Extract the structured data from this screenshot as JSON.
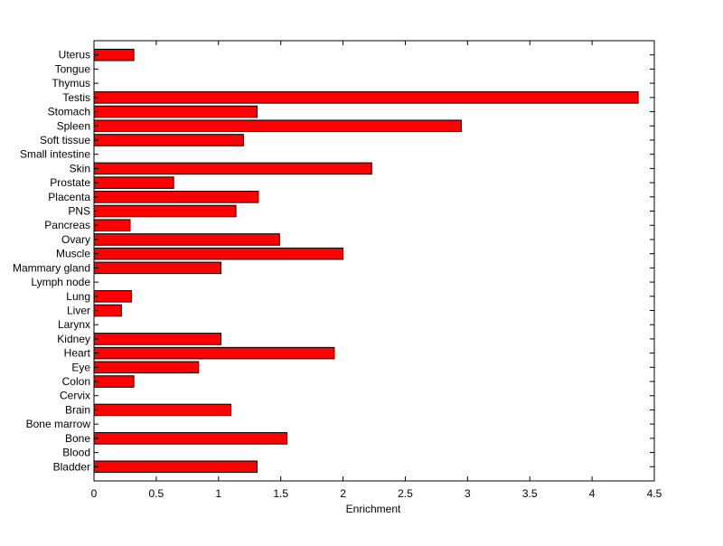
{
  "chart_data": {
    "type": "bar",
    "orientation": "horizontal",
    "title": "",
    "xlabel": "Enrichment",
    "ylabel": "",
    "xlim": [
      0,
      4.5
    ],
    "xticks": [
      "0",
      "0.5",
      "1",
      "1.5",
      "2",
      "2.5",
      "3",
      "3.5",
      "4",
      "4.5"
    ],
    "grid": false,
    "bar_color": "#ff0000",
    "categories": [
      "Bladder",
      "Blood",
      "Bone",
      "Bone marrow",
      "Brain",
      "Cervix",
      "Colon",
      "Eye",
      "Heart",
      "Kidney",
      "Larynx",
      "Liver",
      "Lung",
      "Lymph node",
      "Mammary gland",
      "Muscle",
      "Ovary",
      "Pancreas",
      "PNS",
      "Placenta",
      "Prostate",
      "Skin",
      "Small intestine",
      "Soft tissue",
      "Spleen",
      "Stomach",
      "Testis",
      "Thymus",
      "Tongue",
      "Uterus"
    ],
    "values": [
      1.31,
      0,
      1.55,
      0,
      1.1,
      0,
      0.32,
      0.84,
      1.93,
      1.02,
      0,
      0.22,
      0.3,
      0,
      1.02,
      2.0,
      1.49,
      0.29,
      1.14,
      1.32,
      0.64,
      2.23,
      0,
      1.2,
      2.95,
      1.31,
      4.37,
      0,
      0,
      0.32
    ]
  }
}
